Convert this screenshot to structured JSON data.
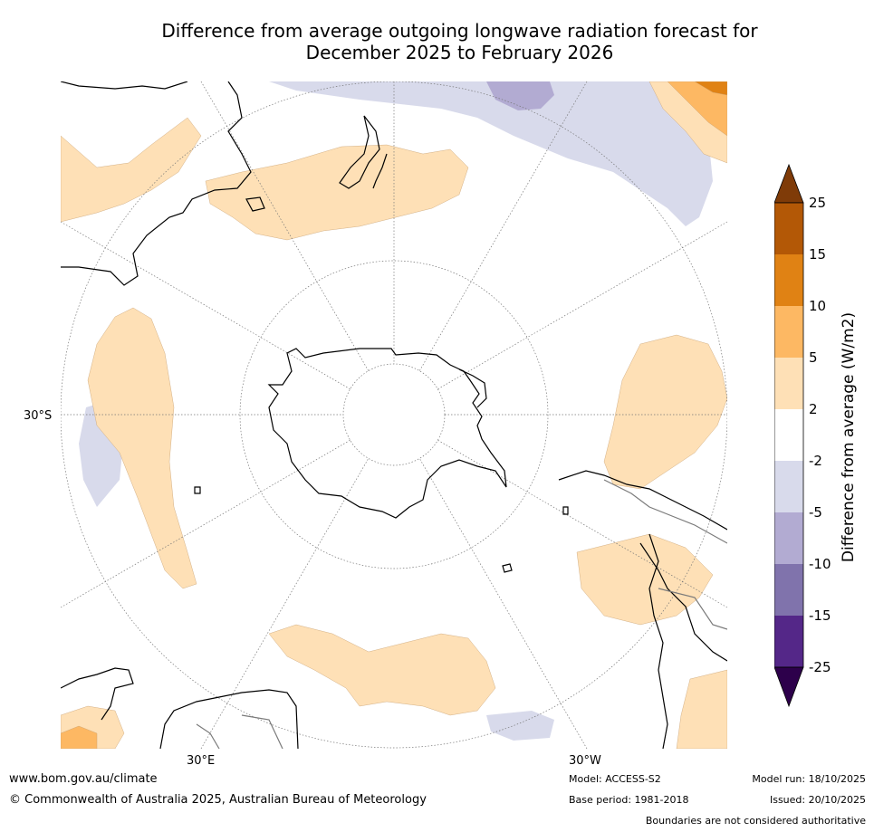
{
  "title_line1": "Difference from average outgoing longwave radiation forecast for",
  "title_line2": "December 2025 to February 2026",
  "axis_labels": {
    "lat": "30°S",
    "lon_east": "30°E",
    "lon_west": "30°W"
  },
  "colorbar": {
    "title": "Difference from average (W/m2)",
    "ticks": [
      "25",
      "15",
      "10",
      "5",
      "2",
      "-2",
      "-5",
      "-10",
      "-15",
      "-25"
    ],
    "colors": {
      "over": "#7f3b08",
      "b15_25": "#b35806",
      "b10_15": "#e08214",
      "b5_10": "#fdb863",
      "b2_5": "#fee0b6",
      "neutral": "#ffffff",
      "n2_5": "#d8daeb",
      "n5_10": "#b2abd2",
      "n10_15": "#8073ac",
      "n15_25": "#542788",
      "under": "#2d004b"
    }
  },
  "footer": {
    "website": "www.bom.gov.au/climate",
    "copyright": "© Commonwealth of Australia 2025, Australian Bureau of Meteorology",
    "model": "Model: ACCESS-S2",
    "base_period": "Base period: 1981-2018",
    "model_run": "Model run: 18/10/2025",
    "issued": "Issued: 20/10/2025",
    "disclaimer": "Boundaries are not considered authoritative"
  }
}
